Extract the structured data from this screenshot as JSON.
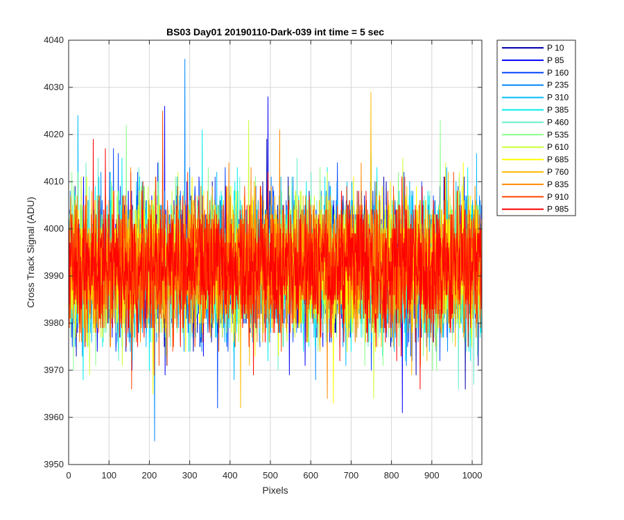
{
  "chart_data": {
    "type": "line",
    "title": "BS03 Day01 20190110-Dark-039 int time = 5 sec",
    "xlabel": "Pixels",
    "ylabel": "Cross Track Signal (ADU)",
    "xlim": [
      0,
      1024
    ],
    "ylim": [
      3950,
      4040
    ],
    "xticks": [
      0,
      100,
      200,
      300,
      400,
      500,
      600,
      700,
      800,
      900,
      1000
    ],
    "yticks": [
      3950,
      3960,
      3970,
      3980,
      3990,
      4000,
      4010,
      4020,
      4030,
      4040
    ],
    "grid": true,
    "legend_position": "outside-right",
    "signal_center": 3992,
    "signal_spread": 7,
    "series": [
      {
        "name": "P 10",
        "color": "#0000a8",
        "extremes": [
          {
            "x": 15,
            "y": 4009
          },
          {
            "x": 490,
            "y": 4019
          }
        ]
      },
      {
        "name": "P 85",
        "color": "#0000ff",
        "extremes": [
          {
            "x": 237,
            "y": 4026
          },
          {
            "x": 493,
            "y": 4028
          },
          {
            "x": 826,
            "y": 3961
          }
        ]
      },
      {
        "name": "P 160",
        "color": "#0044ff",
        "extremes": [
          {
            "x": 122,
            "y": 4016
          },
          {
            "x": 368,
            "y": 3962
          }
        ]
      },
      {
        "name": "P 235",
        "color": "#0088ff",
        "extremes": [
          {
            "x": 287,
            "y": 4036
          },
          {
            "x": 212,
            "y": 3955
          }
        ]
      },
      {
        "name": "P 310",
        "color": "#00bbff",
        "extremes": [
          {
            "x": 22,
            "y": 4024
          },
          {
            "x": 1010,
            "y": 4016
          }
        ]
      },
      {
        "name": "P 385",
        "color": "#00eeee",
        "extremes": [
          {
            "x": 330,
            "y": 4021
          },
          {
            "x": 35,
            "y": 3968
          }
        ]
      },
      {
        "name": "P 460",
        "color": "#66eecc",
        "extremes": [
          {
            "x": 565,
            "y": 4015
          },
          {
            "x": 965,
            "y": 3966
          }
        ]
      },
      {
        "name": "P 535",
        "color": "#88ff88",
        "extremes": [
          {
            "x": 142,
            "y": 4022
          },
          {
            "x": 920,
            "y": 4023
          }
        ]
      },
      {
        "name": "P 610",
        "color": "#ccff33",
        "extremes": [
          {
            "x": 445,
            "y": 4023
          },
          {
            "x": 755,
            "y": 3964
          }
        ]
      },
      {
        "name": "P 685",
        "color": "#ffff00",
        "extremes": [
          {
            "x": 208,
            "y": 3965
          },
          {
            "x": 655,
            "y": 3963
          }
        ]
      },
      {
        "name": "P 760",
        "color": "#ffbb00",
        "extremes": [
          {
            "x": 748,
            "y": 4029
          },
          {
            "x": 425,
            "y": 3962
          }
        ]
      },
      {
        "name": "P 835",
        "color": "#ff8800",
        "extremes": [
          {
            "x": 522,
            "y": 4021
          },
          {
            "x": 640,
            "y": 3964
          }
        ]
      },
      {
        "name": "P 910",
        "color": "#ff4400",
        "extremes": [
          {
            "x": 232,
            "y": 4025
          },
          {
            "x": 155,
            "y": 3966
          }
        ]
      },
      {
        "name": "P 985",
        "color": "#ff0000",
        "extremes": [
          {
            "x": 60,
            "y": 4019
          },
          {
            "x": 870,
            "y": 3966
          }
        ]
      }
    ]
  }
}
